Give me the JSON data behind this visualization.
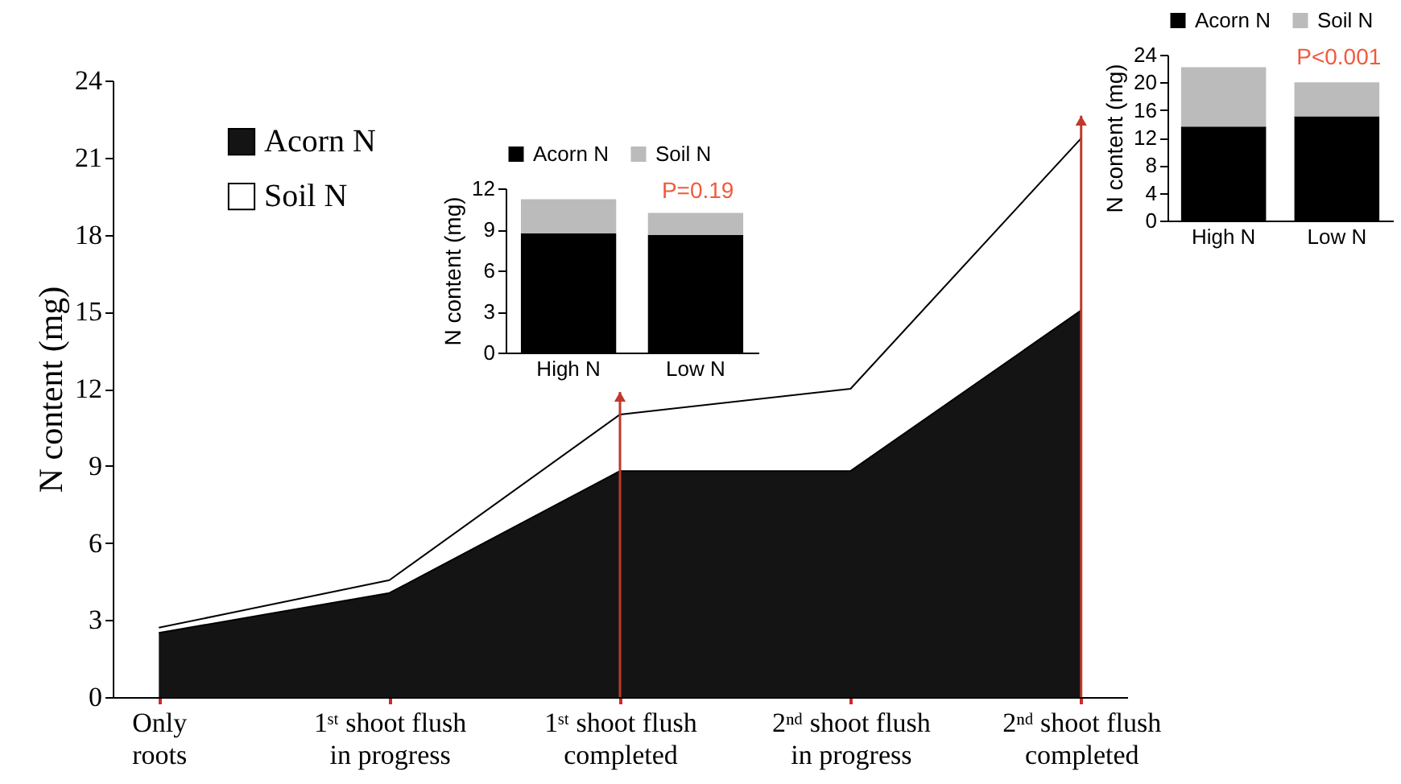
{
  "chart_data": [
    {
      "type": "area",
      "stacked": true,
      "categories": [
        "Only\nroots",
        "1ˢᵗ shoot flush\nin progress",
        "1ˢᵗ shoot flush\ncompleted",
        "2ⁿᵈ shoot flush\nin progress",
        "2ⁿᵈ shoot flush\ncompleted"
      ],
      "series": [
        {
          "name": "Acorn N",
          "color": "#141414",
          "values": [
            2.5,
            4.05,
            8.8,
            8.8,
            15.05
          ]
        },
        {
          "name": "Soil N",
          "color": "#ffffff",
          "values": [
            0.2,
            0.5,
            2.2,
            3.2,
            6.7
          ]
        }
      ],
      "ylabel": "N content (mg)",
      "ylim": [
        0,
        24
      ],
      "yticks": [
        0,
        3,
        6,
        9,
        12,
        15,
        18,
        21,
        24
      ],
      "legend": "top left",
      "ref_lines": [
        {
          "axis": "x",
          "value": "1ˢᵗ shoot flush\ncompleted",
          "color": "#c0392b"
        },
        {
          "axis": "x",
          "value": "2ⁿᵈ shoot flush\ncompleted",
          "color": "#c0392b"
        }
      ]
    },
    {
      "type": "bar",
      "stacked": true,
      "categories": [
        "High N",
        "Low N"
      ],
      "series": [
        {
          "name": "Acorn N",
          "color": "#000000",
          "values": [
            8.7,
            8.6
          ]
        },
        {
          "name": "Soil N",
          "color": "#bbbbbb",
          "values": [
            2.5,
            1.6
          ]
        }
      ],
      "ylabel": "N content (mg)",
      "ylim": [
        0,
        12
      ],
      "yticks": [
        0,
        3,
        6,
        9,
        12
      ],
      "legend": "top",
      "annotations": [
        "P=0.19"
      ]
    },
    {
      "type": "bar",
      "stacked": true,
      "categories": [
        "High N",
        "Low N"
      ],
      "series": [
        {
          "name": "Acorn N",
          "color": "#000000",
          "values": [
            13.6,
            15.1
          ]
        },
        {
          "name": "Soil N",
          "color": "#bbbbbb",
          "values": [
            8.6,
            4.9
          ]
        }
      ],
      "ylabel": "N content (mg)",
      "ylim": [
        0,
        24
      ],
      "yticks": [
        0,
        4,
        8,
        12,
        16,
        20,
        24
      ],
      "legend": "top",
      "annotations": [
        "P<0.001"
      ]
    }
  ]
}
